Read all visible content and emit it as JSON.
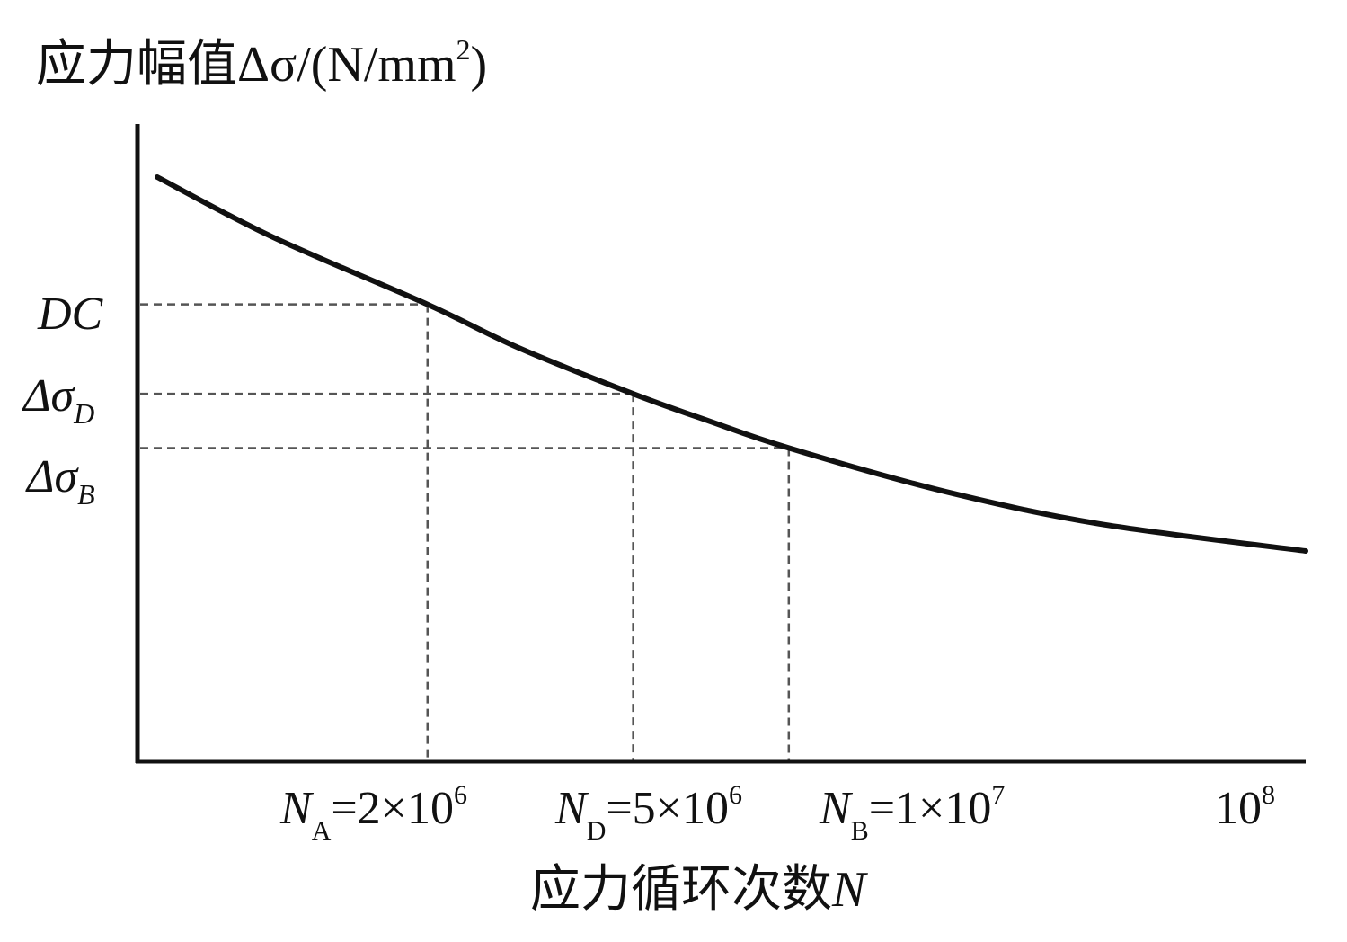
{
  "chart_data": {
    "type": "line",
    "ylabel": "应力幅值Δσ/(N/mm²)",
    "ylabel_parts": {
      "main": "应力幅值Δσ/(N/mm",
      "sup": "2",
      "tail": ")"
    },
    "xlabel": "应力循环次数N",
    "xlabel_parts": {
      "main": "应力循环次数",
      "var": "N"
    },
    "x_scale": "log",
    "xlim": [
      600000,
      100000000
    ],
    "ylim_labels_only": true,
    "series": [
      {
        "x": [
          600000,
          1000000,
          2000000,
          3000000,
          5000000,
          7000000,
          10000000,
          20000000,
          40000000,
          100000000
        ],
        "y": [
          1.85,
          1.63,
          1.38,
          1.22,
          1.05,
          0.95,
          0.85,
          0.69,
          0.57,
          0.47
        ]
      }
    ],
    "reference_points": [
      {
        "id": "A",
        "x": 2000000,
        "y": 1.38,
        "ylabel_main": "DC",
        "ylabel_sub": "",
        "xlabel_var": "N",
        "xlabel_sub": "A",
        "xlabel_val": "=2×10",
        "xlabel_exp": "6"
      },
      {
        "id": "D",
        "x": 5000000,
        "y": 1.05,
        "ylabel_main": "Δσ",
        "ylabel_sub": "D",
        "xlabel_var": "N",
        "xlabel_sub": "D",
        "xlabel_val": "=5×10",
        "xlabel_exp": "6"
      },
      {
        "id": "B",
        "x": 10000000,
        "y": 0.85,
        "ylabel_main": "Δσ",
        "ylabel_sub": "B",
        "xlabel_var": "N",
        "xlabel_sub": "B",
        "xlabel_val": "=1×10",
        "xlabel_exp": "7"
      }
    ],
    "end_tick": {
      "x": 100000000,
      "base": "10",
      "exp": "8"
    },
    "line_color": "#111111",
    "guide_color": "#555555"
  }
}
